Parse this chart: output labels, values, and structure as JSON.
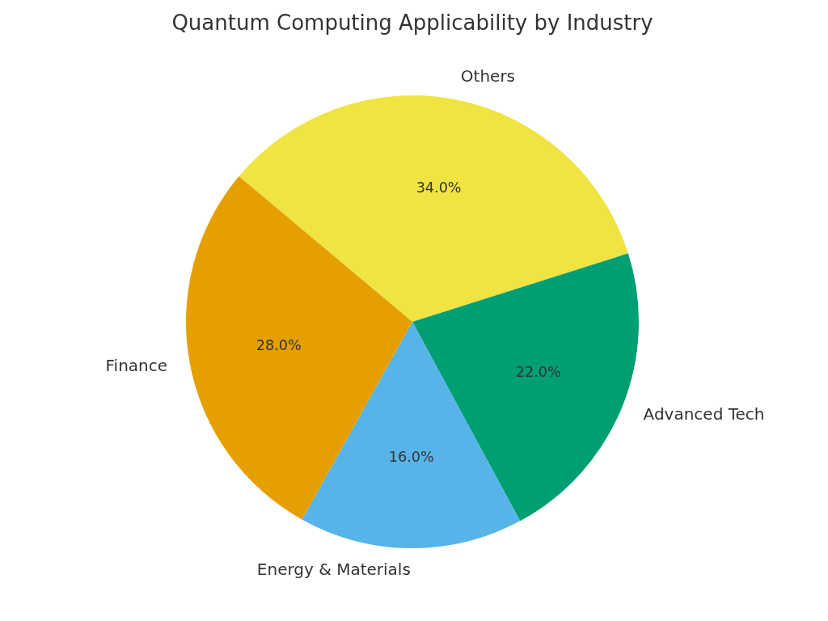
{
  "chart_data": {
    "type": "pie",
    "title": "Quantum Computing Applicability by Industry",
    "categories": [
      "Others",
      "Advanced Tech",
      "Energy & Materials",
      "Finance"
    ],
    "values": [
      34,
      22,
      16,
      28
    ],
    "colors": [
      "#f0e442",
      "#009e73",
      "#56b4e9",
      "#e69f00"
    ],
    "value_labels": [
      "34.0%",
      "22.0%",
      "16.0%",
      "28.0%"
    ]
  }
}
